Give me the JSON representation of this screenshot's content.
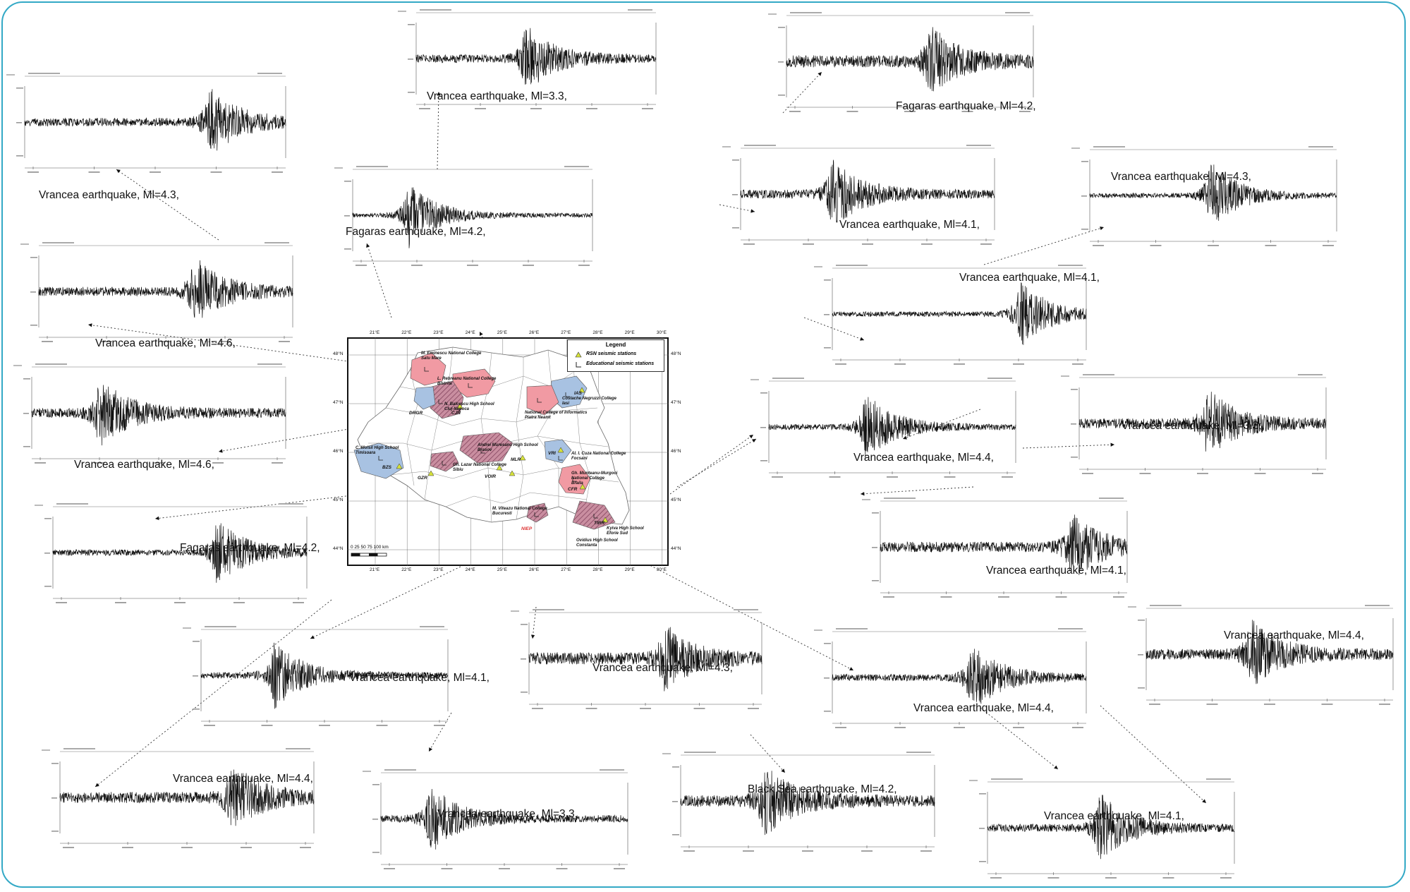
{
  "map": {
    "legend": {
      "title": "Legend",
      "rsn_label": "RSN seismic stations",
      "edu_label": "Educational seismic stations"
    },
    "top_ticks": [
      "21°E",
      "22°E",
      "23°E",
      "24°E",
      "25°E",
      "26°E",
      "27°E",
      "28°E",
      "29°E",
      "30°E"
    ],
    "bottom_ticks": [
      "21°E",
      "22°E",
      "23°E",
      "24°E",
      "25°E",
      "26°E",
      "27°E",
      "28°E",
      "29°E",
      "30°E"
    ],
    "left_ticks": [
      "48°N",
      "47°N",
      "46°N",
      "45°N",
      "44°N"
    ],
    "right_ticks": [
      "48°N",
      "47°N",
      "46°N",
      "45°N",
      "44°N"
    ],
    "scale_label": "0  25  50  75  100 km",
    "schools": [
      "M. Eminescu National College\nSatu Mare",
      "L. Rebreanu National College\nBistrita",
      "N. Balcescu High School\nCluj-Napoca",
      "Costache Negruzzi College\nIasi",
      "National College of Informatics\nPiatra Neamt",
      "C. Moisil High School\nTimisoara",
      "Andrei Muresanu High School\nBrasov",
      "Al. I. Cuza National College\nFocsani",
      "Gh. Lazar National College\nSibiu",
      "Gh. Munteanu-Murgoci\nNational College\nBraila",
      "M. Viteazu National College\nBucuresti",
      "Ovidius High School\nConstanta",
      "Kyiva High School\nEforie Sud"
    ],
    "stations": [
      "CJR",
      "IAS",
      "DRGR",
      "VRI",
      "BZS",
      "GZR",
      "VOIR",
      "MLR",
      "CFR",
      "TIRR",
      "NIEP"
    ]
  },
  "waveforms": [
    {
      "caption": "Vrancea earthquake, Ml=3.3,"
    },
    {
      "caption": "Fagaras earthquake, Ml=4.2,"
    },
    {
      "caption": "Vrancea earthquake, Ml=4.3,"
    },
    {
      "caption": "Fagaras earthquake, Ml=4.2,"
    },
    {
      "caption": "Vrancea earthquake, Ml=4.1,"
    },
    {
      "caption": "Vrancea earthquake, Ml=4.3,"
    },
    {
      "caption": "Vrancea earthquake, Ml=4.6,"
    },
    {
      "caption": "Vrancea earthquake, Ml=4.1,"
    },
    {
      "caption": "Vrancea earthquake, Ml=4.6,"
    },
    {
      "caption": "Vrancea earthquake, Ml=4.4,"
    },
    {
      "caption": "Vrancea earthquake, Ml=3.3,"
    },
    {
      "caption": "Fagaras earthquake, Ml=4.2,"
    },
    {
      "caption": "Vrancea earthquake, Ml=4.1,"
    },
    {
      "caption": "Vrancea earthquake, Ml=4.1,"
    },
    {
      "caption": "Vrancea earthquake, Ml=4.4,"
    },
    {
      "caption": "Vrancea earthquake, Ml=4.4,"
    },
    {
      "caption": "Vrancea earthquake, Ml=4.4,"
    },
    {
      "caption": "Vrancea earthquake, Ml=3.3,"
    },
    {
      "caption": "Black Sea earthquake, Ml=4.2,"
    },
    {
      "caption": "Vrancea earthquake, Ml=4.1,"
    },
    {
      "caption": "Vrancea earthquake, Ml=4.3,"
    }
  ],
  "colors": {
    "frame": "#33a9c6",
    "county_red": "#f19aa3",
    "county_blue": "#a8c2e2",
    "county_hatch": "#b0687e",
    "rsn_triangle": "#d7e33a"
  }
}
